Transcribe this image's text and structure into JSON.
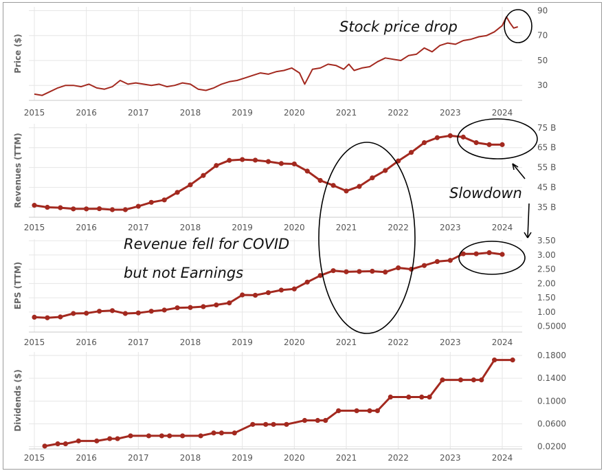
{
  "colors": {
    "series": "#a3291f",
    "grid": "#e6e6e6",
    "text": "#555555"
  },
  "annotations": {
    "stock_drop": "Stock price drop",
    "slowdown": "Slowdown",
    "covid_line1": "Revenue fell for COVID",
    "covid_line2": "but not Earnings"
  },
  "chart_data": [
    {
      "type": "line",
      "ylabel": "Price ($)",
      "x_ticks": [
        "2015",
        "2016",
        "2017",
        "2018",
        "2019",
        "2020",
        "2021",
        "2022",
        "2023",
        "2024"
      ],
      "y_ticks": [
        "30",
        "50",
        "70",
        "90"
      ],
      "ylim": [
        18,
        93
      ],
      "x": [
        2015.0,
        2015.15,
        2015.3,
        2015.45,
        2015.6,
        2015.75,
        2015.9,
        2016.05,
        2016.2,
        2016.35,
        2016.5,
        2016.65,
        2016.8,
        2016.95,
        2017.1,
        2017.25,
        2017.4,
        2017.55,
        2017.7,
        2017.85,
        2018.0,
        2018.15,
        2018.3,
        2018.45,
        2018.6,
        2018.75,
        2018.9,
        2019.05,
        2019.2,
        2019.35,
        2019.5,
        2019.65,
        2019.8,
        2019.95,
        2020.1,
        2020.2,
        2020.25,
        2020.35,
        2020.5,
        2020.65,
        2020.8,
        2020.95,
        2021.05,
        2021.15,
        2021.3,
        2021.45,
        2021.6,
        2021.75,
        2021.9,
        2022.05,
        2022.2,
        2022.35,
        2022.5,
        2022.65,
        2022.8,
        2022.95,
        2023.1,
        2023.25,
        2023.4,
        2023.55,
        2023.7,
        2023.85,
        2024.0,
        2024.08,
        2024.15,
        2024.22,
        2024.3
      ],
      "values": [
        23,
        22,
        25,
        28,
        30,
        30,
        29,
        31,
        28,
        27,
        29,
        34,
        31,
        32,
        31,
        30,
        31,
        29,
        30,
        32,
        31,
        27,
        26,
        28,
        31,
        33,
        34,
        36,
        38,
        40,
        39,
        41,
        42,
        44,
        40,
        31,
        35,
        43,
        44,
        47,
        46,
        43,
        47,
        42,
        44,
        45,
        49,
        52,
        51,
        50,
        54,
        55,
        60,
        57,
        62,
        64,
        63,
        66,
        67,
        69,
        70,
        73,
        78,
        85,
        80,
        76,
        77
      ]
    },
    {
      "type": "line",
      "ylabel": "Revenues (TTM)",
      "x_ticks": [
        "2015",
        "2016",
        "2017",
        "2018",
        "2019",
        "2020",
        "2021",
        "2022",
        "2023",
        "2024"
      ],
      "y_ticks": [
        "35 B",
        "45 B",
        "55 B",
        "65 B",
        "75 B"
      ],
      "ylim": [
        30,
        77
      ],
      "x": [
        2015.0,
        2015.25,
        2015.5,
        2015.75,
        2016.0,
        2016.25,
        2016.5,
        2016.75,
        2017.0,
        2017.25,
        2017.5,
        2017.75,
        2018.0,
        2018.25,
        2018.5,
        2018.75,
        2019.0,
        2019.25,
        2019.5,
        2019.75,
        2020.0,
        2020.25,
        2020.5,
        2020.75,
        2021.0,
        2021.25,
        2021.5,
        2021.75,
        2022.0,
        2022.25,
        2022.5,
        2022.75,
        2023.0,
        2023.25,
        2023.5,
        2023.75,
        2024.0
      ],
      "values": [
        36,
        35,
        34.8,
        34.2,
        34.2,
        34.3,
        33.8,
        33.8,
        35.5,
        37.5,
        38.7,
        42.5,
        46.3,
        51,
        56,
        58.6,
        59,
        58.7,
        58,
        57,
        56.8,
        53.2,
        48.5,
        46,
        43.2,
        45.5,
        49.8,
        53.5,
        58.3,
        62.6,
        67.5,
        70,
        71,
        70.3,
        67.5,
        66.5,
        66.5
      ]
    },
    {
      "type": "line",
      "ylabel": "EPS (TTM)",
      "x_ticks": [
        "2015",
        "2016",
        "2017",
        "2018",
        "2019",
        "2020",
        "2021",
        "2022",
        "2023",
        "2024"
      ],
      "y_ticks": [
        "0.5000",
        "1.00",
        "1.50",
        "2.00",
        "2.50",
        "3.00",
        "3.50"
      ],
      "ylim": [
        0.3,
        3.55
      ],
      "x": [
        2015.0,
        2015.25,
        2015.5,
        2015.75,
        2016.0,
        2016.25,
        2016.5,
        2016.75,
        2017.0,
        2017.25,
        2017.5,
        2017.75,
        2018.0,
        2018.25,
        2018.5,
        2018.75,
        2019.0,
        2019.25,
        2019.5,
        2019.75,
        2020.0,
        2020.25,
        2020.5,
        2020.75,
        2021.0,
        2021.25,
        2021.5,
        2021.75,
        2022.0,
        2022.25,
        2022.5,
        2022.75,
        2023.0,
        2023.25,
        2023.5,
        2023.75,
        2024.0
      ],
      "values": [
        0.82,
        0.8,
        0.83,
        0.95,
        0.96,
        1.03,
        1.05,
        0.95,
        0.97,
        1.03,
        1.07,
        1.15,
        1.16,
        1.19,
        1.25,
        1.32,
        1.6,
        1.59,
        1.68,
        1.77,
        1.81,
        2.05,
        2.28,
        2.45,
        2.41,
        2.42,
        2.43,
        2.4,
        2.55,
        2.5,
        2.63,
        2.77,
        2.81,
        3.04,
        3.04,
        3.08,
        3.02
      ]
    },
    {
      "type": "line",
      "ylabel": "Dividends ($)",
      "x_ticks": [
        "2015",
        "2016",
        "2017",
        "2018",
        "2019",
        "2020",
        "2021",
        "2022",
        "2023",
        "2024"
      ],
      "y_ticks": [
        "0.0200",
        "0.0600",
        "0.1000",
        "0.1400",
        "0.1800"
      ],
      "ylim": [
        0.016,
        0.186
      ],
      "x": [
        2015.2,
        2015.45,
        2015.6,
        2015.85,
        2016.2,
        2016.45,
        2016.6,
        2016.85,
        2017.2,
        2017.45,
        2017.6,
        2017.85,
        2018.2,
        2018.45,
        2018.6,
        2018.85,
        2019.2,
        2019.45,
        2019.6,
        2019.85,
        2020.2,
        2020.45,
        2020.6,
        2020.85,
        2021.2,
        2021.45,
        2021.6,
        2021.85,
        2022.2,
        2022.45,
        2022.6,
        2022.85,
        2023.2,
        2023.45,
        2023.6,
        2023.85,
        2024.2
      ],
      "values": [
        0.021,
        0.025,
        0.025,
        0.03,
        0.03,
        0.034,
        0.034,
        0.039,
        0.039,
        0.039,
        0.039,
        0.039,
        0.039,
        0.044,
        0.044,
        0.044,
        0.059,
        0.059,
        0.059,
        0.059,
        0.066,
        0.066,
        0.066,
        0.083,
        0.083,
        0.083,
        0.083,
        0.107,
        0.107,
        0.107,
        0.107,
        0.137,
        0.137,
        0.137,
        0.137,
        0.172,
        0.172
      ]
    }
  ]
}
